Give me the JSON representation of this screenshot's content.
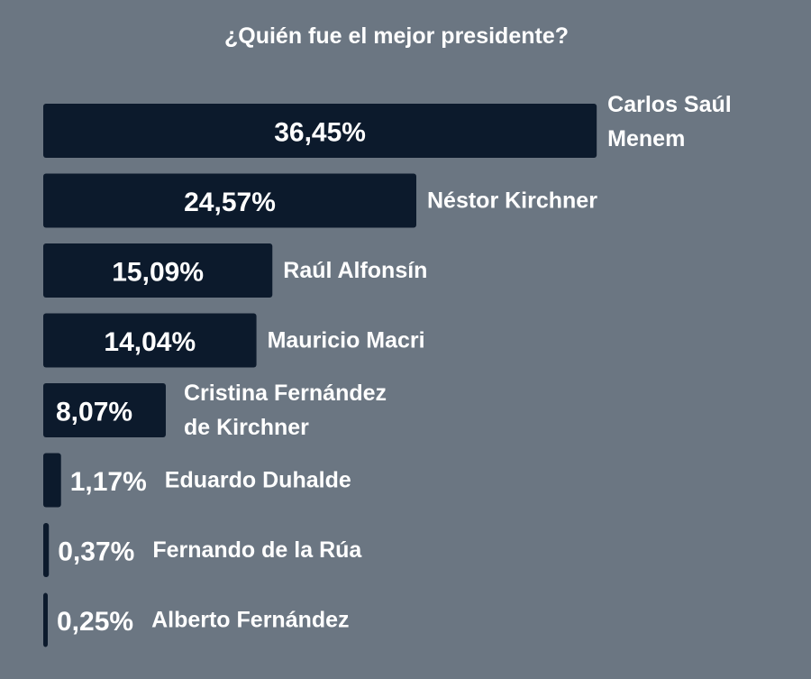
{
  "chart_data": {
    "type": "bar",
    "orientation": "horizontal",
    "title": "¿Quién fue el mejor presidente?",
    "categories": [
      "Carlos Saúl Menem",
      "Néstor Kirchner",
      "Raúl Alfonsín",
      "Mauricio Macri",
      "Cristina Fernández de Kirchner",
      "Eduardo Duhalde",
      "Fernando de la Rúa",
      "Alberto Fernández"
    ],
    "category_lines": [
      [
        "Carlos Saúl",
        "Menem"
      ],
      [
        "Néstor Kirchner"
      ],
      [
        "Raúl Alfonsín"
      ],
      [
        "Mauricio Macri"
      ],
      [
        "Cristina Fernández",
        "de Kirchner"
      ],
      [
        "Eduardo Duhalde"
      ],
      [
        "Fernando de la Rúa"
      ],
      [
        "Alberto Fernández"
      ]
    ],
    "values": [
      36.45,
      24.57,
      15.09,
      14.04,
      8.07,
      1.17,
      0.37,
      0.25
    ],
    "value_labels": [
      "36,45%",
      "24,57%",
      "15,09%",
      "14,04%",
      "8,07%",
      "1,17%",
      "0,37%",
      "0,25%"
    ],
    "unit": "%",
    "xlabel": "",
    "ylabel": "",
    "grid": false,
    "legend": "none",
    "colors": {
      "background": "#6b7682",
      "bar": "#0c1a2c",
      "text": "#ffffff"
    }
  }
}
